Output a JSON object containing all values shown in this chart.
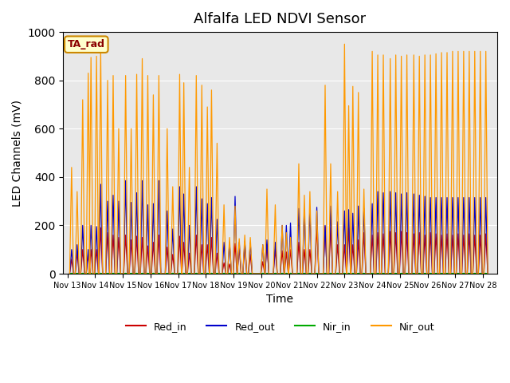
{
  "title": "Alfalfa LED NDVI Sensor",
  "xlabel": "Time",
  "ylabel": "LED Channels (mV)",
  "ylim": [
    0,
    1000
  ],
  "background_color": "#e8e8e8",
  "legend_box_label": "TA_rad",
  "x_tick_labels": [
    "Nov 13",
    "Nov 14",
    "Nov 15",
    "Nov 16",
    "Nov 17",
    "Nov 18",
    "Nov 19",
    "Nov 20",
    "Nov 21",
    "Nov 22",
    "Nov 23",
    "Nov 24",
    "Nov 25",
    "Nov 26",
    "Nov 27",
    "Nov 28"
  ],
  "series": {
    "Red_in": {
      "color": "#cc0000"
    },
    "Red_out": {
      "color": "#0000cc"
    },
    "Nir_in": {
      "color": "#00aa00"
    },
    "Nir_out": {
      "color": "#ff9900"
    }
  },
  "spikes": [
    {
      "day": 0.15,
      "ri": 60,
      "ro": 100,
      "ni": 2,
      "no": 440
    },
    {
      "day": 0.35,
      "ri": 90,
      "ro": 120,
      "ni": 2,
      "no": 340
    },
    {
      "day": 0.55,
      "ri": 100,
      "ro": 200,
      "ni": 2,
      "no": 720
    },
    {
      "day": 0.75,
      "ri": 80,
      "ro": 100,
      "ni": 2,
      "no": 830
    },
    {
      "day": 0.85,
      "ri": 100,
      "ro": 200,
      "ni": 2,
      "no": 895
    },
    {
      "day": 1.05,
      "ri": 100,
      "ro": 195,
      "ni": 2,
      "no": 900
    },
    {
      "day": 1.2,
      "ri": 190,
      "ro": 370,
      "ni": 2,
      "no": 930
    },
    {
      "day": 1.45,
      "ri": 170,
      "ro": 300,
      "ni": 2,
      "no": 800
    },
    {
      "day": 1.65,
      "ri": 160,
      "ro": 325,
      "ni": 2,
      "no": 820
    },
    {
      "day": 1.85,
      "ri": 150,
      "ro": 300,
      "ni": 2,
      "no": 600
    },
    {
      "day": 2.1,
      "ri": 160,
      "ro": 385,
      "ni": 2,
      "no": 820
    },
    {
      "day": 2.3,
      "ri": 140,
      "ro": 295,
      "ni": 2,
      "no": 600
    },
    {
      "day": 2.5,
      "ri": 155,
      "ro": 335,
      "ni": 2,
      "no": 825
    },
    {
      "day": 2.7,
      "ri": 150,
      "ro": 385,
      "ni": 2,
      "no": 890
    },
    {
      "day": 2.9,
      "ri": 115,
      "ro": 285,
      "ni": 2,
      "no": 820
    },
    {
      "day": 3.1,
      "ri": 130,
      "ro": 290,
      "ni": 2,
      "no": 740
    },
    {
      "day": 3.3,
      "ri": 160,
      "ro": 385,
      "ni": 2,
      "no": 820
    },
    {
      "day": 3.6,
      "ri": 110,
      "ro": 260,
      "ni": 2,
      "no": 600
    },
    {
      "day": 3.8,
      "ri": 80,
      "ro": 185,
      "ni": 2,
      "no": 360
    },
    {
      "day": 4.05,
      "ri": 155,
      "ro": 360,
      "ni": 2,
      "no": 825
    },
    {
      "day": 4.2,
      "ri": 130,
      "ro": 330,
      "ni": 2,
      "no": 790
    },
    {
      "day": 4.4,
      "ri": 85,
      "ro": 200,
      "ni": 2,
      "no": 440
    },
    {
      "day": 4.65,
      "ri": 160,
      "ro": 360,
      "ni": 2,
      "no": 820
    },
    {
      "day": 4.85,
      "ri": 120,
      "ro": 310,
      "ni": 2,
      "no": 780
    },
    {
      "day": 5.05,
      "ri": 120,
      "ro": 290,
      "ni": 2,
      "no": 690
    },
    {
      "day": 5.2,
      "ri": 150,
      "ro": 315,
      "ni": 2,
      "no": 760
    },
    {
      "day": 5.4,
      "ri": 85,
      "ro": 225,
      "ni": 2,
      "no": 540
    },
    {
      "day": 5.65,
      "ri": 45,
      "ro": 130,
      "ni": 2,
      "no": 285
    },
    {
      "day": 5.85,
      "ri": 40,
      "ro": 128,
      "ni": 2,
      "no": 150
    },
    {
      "day": 6.05,
      "ri": 125,
      "ro": 320,
      "ni": 2,
      "no": 280
    },
    {
      "day": 6.2,
      "ri": 110,
      "ro": 130,
      "ni": 2,
      "no": 145
    },
    {
      "day": 6.4,
      "ri": 120,
      "ro": 135,
      "ni": 2,
      "no": 160
    },
    {
      "day": 6.6,
      "ri": 80,
      "ro": 128,
      "ni": 2,
      "no": 150
    },
    {
      "day": 7.05,
      "ri": 50,
      "ro": 120,
      "ni": 2,
      "no": 120
    },
    {
      "day": 7.2,
      "ri": 120,
      "ro": 140,
      "ni": 2,
      "no": 350
    },
    {
      "day": 7.5,
      "ri": 100,
      "ro": 130,
      "ni": 2,
      "no": 285
    },
    {
      "day": 7.75,
      "ri": 95,
      "ro": 200,
      "ni": 2,
      "no": 200
    },
    {
      "day": 7.9,
      "ri": 90,
      "ro": 200,
      "ni": 2,
      "no": 170
    },
    {
      "day": 8.05,
      "ri": 100,
      "ro": 210,
      "ni": 2,
      "no": 150
    },
    {
      "day": 8.35,
      "ri": 130,
      "ro": 270,
      "ni": 2,
      "no": 455
    },
    {
      "day": 8.55,
      "ri": 100,
      "ro": 265,
      "ni": 2,
      "no": 325
    },
    {
      "day": 8.75,
      "ri": 100,
      "ro": 270,
      "ni": 2,
      "no": 340
    },
    {
      "day": 9.0,
      "ri": 195,
      "ro": 275,
      "ni": 2,
      "no": 260
    },
    {
      "day": 9.3,
      "ri": 195,
      "ro": 200,
      "ni": 2,
      "no": 780
    },
    {
      "day": 9.5,
      "ri": 190,
      "ro": 280,
      "ni": 2,
      "no": 455
    },
    {
      "day": 9.75,
      "ri": 120,
      "ro": 215,
      "ni": 2,
      "no": 340
    },
    {
      "day": 10.0,
      "ri": 120,
      "ro": 260,
      "ni": 2,
      "no": 950
    },
    {
      "day": 10.15,
      "ri": 190,
      "ro": 265,
      "ni": 2,
      "no": 695
    },
    {
      "day": 10.3,
      "ri": 120,
      "ro": 250,
      "ni": 2,
      "no": 775
    },
    {
      "day": 10.5,
      "ri": 140,
      "ro": 280,
      "ni": 2,
      "no": 750
    },
    {
      "day": 10.7,
      "ri": 170,
      "ro": 270,
      "ni": 2,
      "no": 350
    },
    {
      "day": 11.0,
      "ri": 160,
      "ro": 290,
      "ni": 2,
      "no": 920
    },
    {
      "day": 11.2,
      "ri": 170,
      "ro": 340,
      "ni": 2,
      "no": 905
    },
    {
      "day": 11.4,
      "ri": 165,
      "ro": 335,
      "ni": 2,
      "no": 905
    },
    {
      "day": 11.65,
      "ri": 175,
      "ro": 340,
      "ni": 2,
      "no": 890
    },
    {
      "day": 11.85,
      "ri": 170,
      "ro": 335,
      "ni": 2,
      "no": 905
    },
    {
      "day": 12.05,
      "ri": 175,
      "ro": 330,
      "ni": 2,
      "no": 900
    },
    {
      "day": 12.25,
      "ri": 170,
      "ro": 335,
      "ni": 2,
      "no": 905
    },
    {
      "day": 12.5,
      "ri": 165,
      "ro": 330,
      "ni": 2,
      "no": 905
    },
    {
      "day": 12.7,
      "ri": 170,
      "ro": 325,
      "ni": 2,
      "no": 900
    },
    {
      "day": 12.9,
      "ri": 160,
      "ro": 320,
      "ni": 2,
      "no": 905
    },
    {
      "day": 13.1,
      "ri": 170,
      "ro": 315,
      "ni": 2,
      "no": 905
    },
    {
      "day": 13.3,
      "ri": 165,
      "ro": 315,
      "ni": 2,
      "no": 910
    },
    {
      "day": 13.5,
      "ri": 160,
      "ro": 315,
      "ni": 2,
      "no": 915
    },
    {
      "day": 13.7,
      "ri": 165,
      "ro": 315,
      "ni": 2,
      "no": 915
    },
    {
      "day": 13.9,
      "ri": 160,
      "ro": 315,
      "ni": 2,
      "no": 920
    },
    {
      "day": 14.1,
      "ri": 165,
      "ro": 315,
      "ni": 2,
      "no": 920
    },
    {
      "day": 14.3,
      "ri": 160,
      "ro": 315,
      "ni": 2,
      "no": 920
    },
    {
      "day": 14.5,
      "ri": 165,
      "ro": 315,
      "ni": 2,
      "no": 920
    },
    {
      "day": 14.7,
      "ri": 160,
      "ro": 315,
      "ni": 2,
      "no": 920
    },
    {
      "day": 14.9,
      "ri": 160,
      "ro": 315,
      "ni": 2,
      "no": 920
    },
    {
      "day": 15.1,
      "ri": 165,
      "ro": 315,
      "ni": 2,
      "no": 920
    }
  ]
}
